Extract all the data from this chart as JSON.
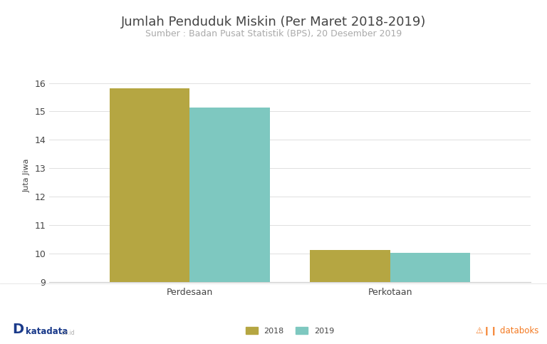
{
  "title": "Jumlah Penduduk Miskin (Per Maret 2018-2019)",
  "subtitle": "Sumber : Badan Pusat Statistik (BPS), 20 Desember 2019",
  "categories": [
    "Perdesaan",
    "Perkotaan"
  ],
  "values_2018": [
    15.81,
    10.14
  ],
  "values_2019": [
    15.15,
    10.04
  ],
  "color_2018": "#b5a642",
  "color_2019": "#7ec8c0",
  "ylabel": "Juta Jiwa",
  "ylim": [
    9,
    16.5
  ],
  "yticks": [
    9,
    10,
    11,
    12,
    13,
    14,
    15,
    16
  ],
  "legend_labels": [
    "2018",
    "2019"
  ],
  "bar_width": 0.4,
  "background_color": "#ffffff",
  "title_fontsize": 13,
  "subtitle_fontsize": 9,
  "subtitle_color": "#aaaaaa",
  "tick_label_fontsize": 9,
  "ylabel_fontsize": 8,
  "legend_fontsize": 8,
  "grid_color": "#e0e0e0",
  "axis_color": "#cccccc",
  "text_color": "#444444"
}
